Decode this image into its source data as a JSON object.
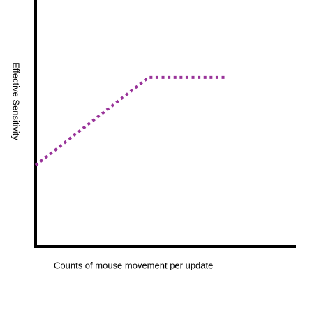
{
  "chart_data": {
    "type": "line",
    "x_label": "Counts of mouse movement per update",
    "y_label": "Effective Sensitivity",
    "x": [
      0,
      43.5,
      73
    ],
    "series": [
      {
        "color": "#993399",
        "values": [
          33,
          68.6,
          68.6
        ]
      }
    ],
    "xlim": [
      0,
      100
    ],
    "ylim": [
      0,
      100
    ],
    "line_style": "dotted"
  }
}
